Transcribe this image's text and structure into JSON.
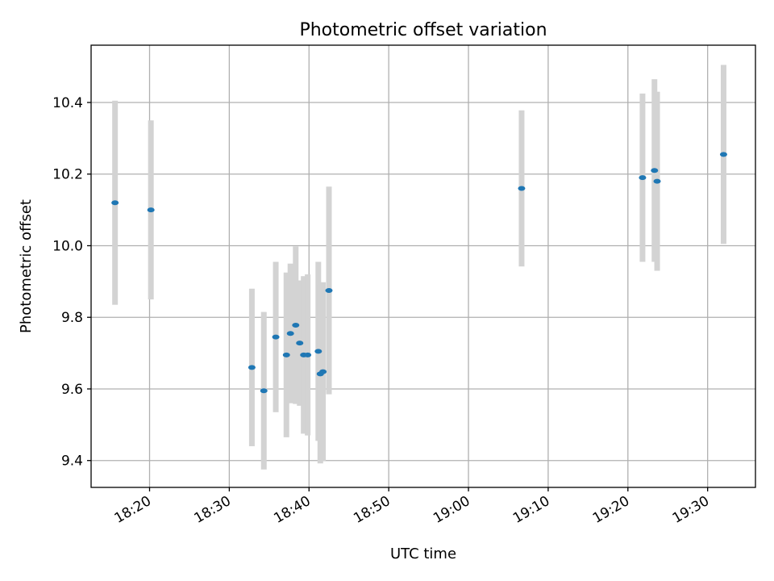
{
  "chart_data": {
    "type": "scatter",
    "title": "Photometric offset variation",
    "xlabel": "UTC time",
    "ylabel": "Photometric offset",
    "xlim": [
      "18:12:40",
      "19:36:00"
    ],
    "ylim": [
      9.325,
      10.56
    ],
    "xticks": [
      "18:20",
      "18:30",
      "18:40",
      "18:50",
      "19:00",
      "19:10",
      "19:20",
      "19:30"
    ],
    "yticks": [
      9.4,
      9.6,
      9.8,
      10.0,
      10.2,
      10.4
    ],
    "grid": true,
    "points": [
      {
        "time": "18:15:40",
        "y": 10.12,
        "err": 0.285
      },
      {
        "time": "18:20:10",
        "y": 10.1,
        "err": 0.25
      },
      {
        "time": "18:32:50",
        "y": 9.66,
        "err": 0.22
      },
      {
        "time": "18:34:20",
        "y": 9.595,
        "err": 0.22
      },
      {
        "time": "18:35:50",
        "y": 9.745,
        "err": 0.21
      },
      {
        "time": "18:37:10",
        "y": 9.695,
        "err": 0.23
      },
      {
        "time": "18:37:40",
        "y": 9.755,
        "err": 0.195
      },
      {
        "time": "18:38:20",
        "y": 9.778,
        "err": 0.22
      },
      {
        "time": "18:38:50",
        "y": 9.728,
        "err": 0.175
      },
      {
        "time": "18:39:20",
        "y": 9.695,
        "err": 0.22
      },
      {
        "time": "18:39:50",
        "y": 9.695,
        "err": 0.225
      },
      {
        "time": "18:41:10",
        "y": 9.705,
        "err": 0.25
      },
      {
        "time": "18:41:25",
        "y": 9.642,
        "err": 0.25
      },
      {
        "time": "18:41:45",
        "y": 9.648,
        "err": 0.25
      },
      {
        "time": "18:42:30",
        "y": 9.875,
        "err": 0.29
      },
      {
        "time": "19:06:40",
        "y": 10.16,
        "err": 0.218
      },
      {
        "time": "19:21:50",
        "y": 10.19,
        "err": 0.235
      },
      {
        "time": "19:23:20",
        "y": 10.21,
        "err": 0.255
      },
      {
        "time": "19:23:40",
        "y": 10.18,
        "err": 0.25
      },
      {
        "time": "19:32:00",
        "y": 10.255,
        "err": 0.25
      }
    ]
  }
}
